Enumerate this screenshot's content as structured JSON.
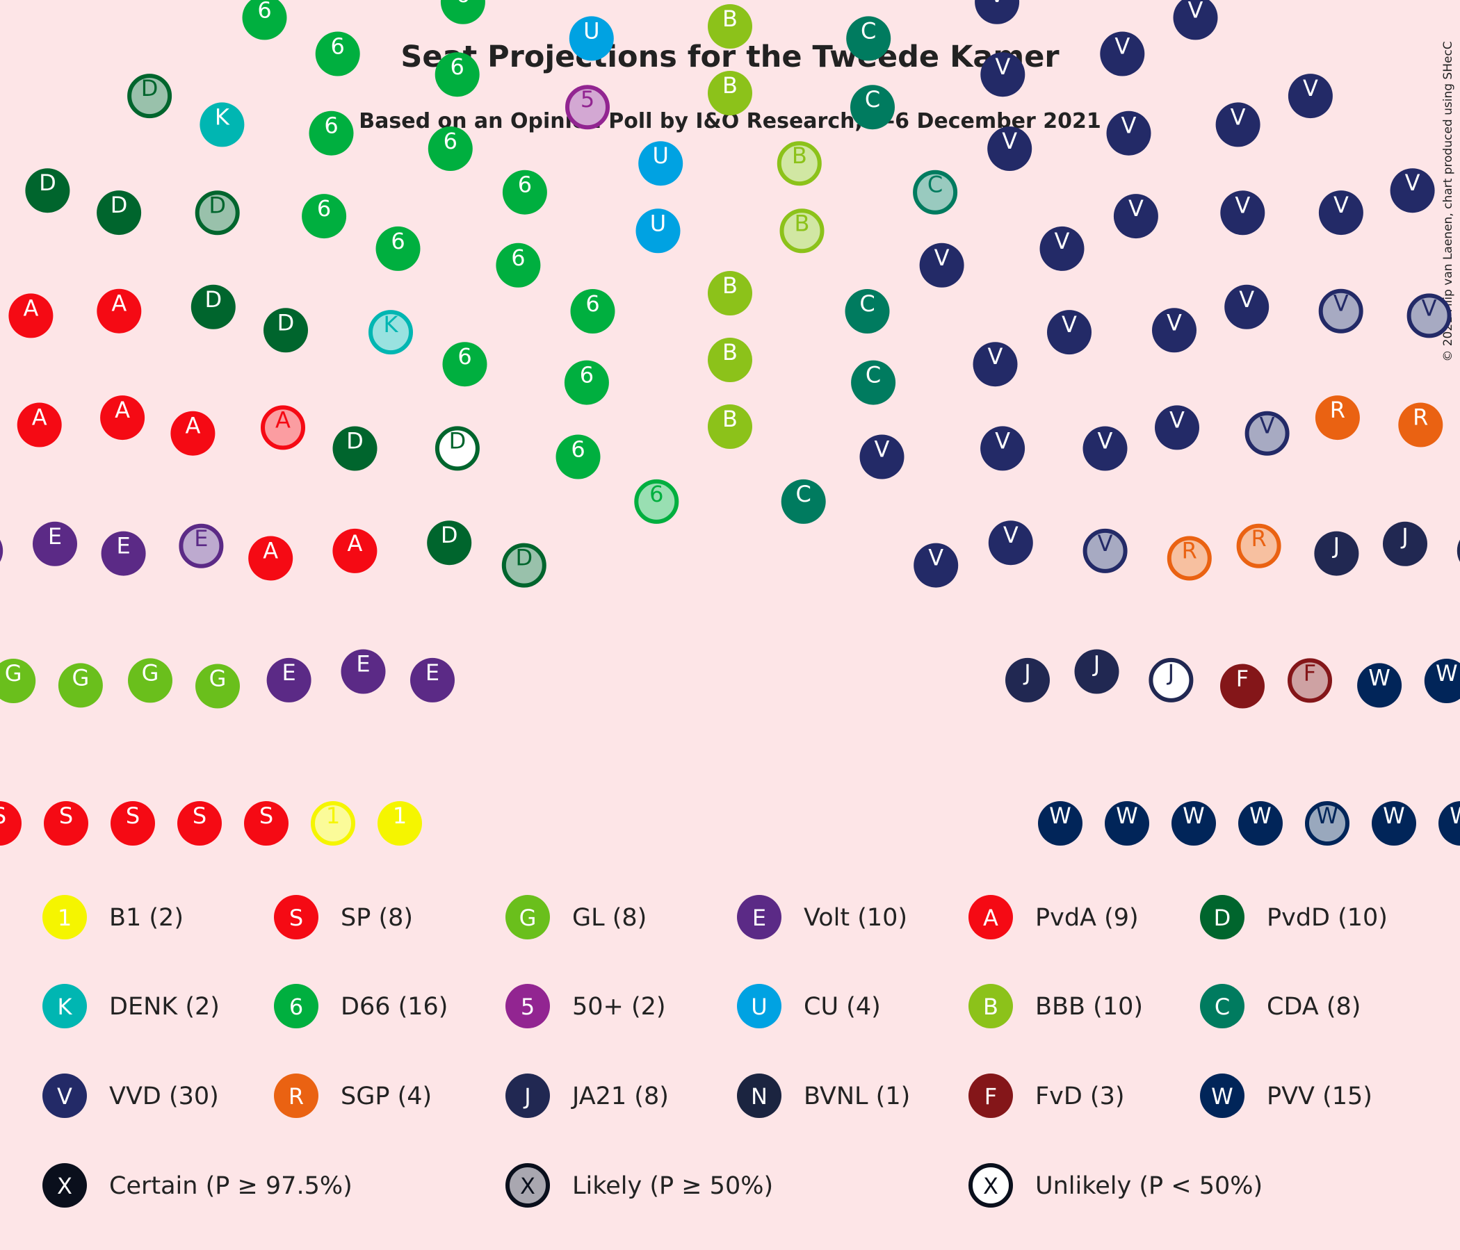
{
  "chart_data": {
    "type": "parliament",
    "title": "Seat Projections for the Tweede Kamer",
    "subtitle": "Based on an Opinion Poll by I&O Research, 3–6 December 2021",
    "copyright": "© 2021 Filip van Laenen, chart produced using SHecC",
    "total_seats": 150,
    "parties": [
      {
        "id": "B1",
        "letter": "1",
        "label": "B1 (2)",
        "color": "#f5f500",
        "seats": 2,
        "certain": 1,
        "likely": 1,
        "unlikely": 0
      },
      {
        "id": "SP",
        "letter": "S",
        "label": "SP (8)",
        "color": "#f50a14",
        "seats": 8,
        "certain": 6,
        "likely": 2,
        "unlikely": 0
      },
      {
        "id": "GL",
        "letter": "G",
        "label": "GL (8)",
        "color": "#6abf1c",
        "seats": 8,
        "certain": 7,
        "likely": 1,
        "unlikely": 0
      },
      {
        "id": "Volt",
        "letter": "E",
        "label": "Volt (10)",
        "color": "#5b2a86",
        "seats": 10,
        "certain": 8,
        "likely": 2,
        "unlikely": 0
      },
      {
        "id": "PvdA",
        "letter": "A",
        "label": "PvdA (9)",
        "color": "#f50a14",
        "seats": 9,
        "certain": 8,
        "likely": 1,
        "unlikely": 0
      },
      {
        "id": "PvdD",
        "letter": "D",
        "label": "PvdD (10)",
        "color": "#00652d",
        "seats": 10,
        "certain": 6,
        "likely": 3,
        "unlikely": 1
      },
      {
        "id": "DENK",
        "letter": "K",
        "label": "DENK (2)",
        "color": "#00b6b2",
        "seats": 2,
        "certain": 1,
        "likely": 1,
        "unlikely": 0
      },
      {
        "id": "D66",
        "letter": "6",
        "label": "D66 (16)",
        "color": "#00af3f",
        "seats": 16,
        "certain": 15,
        "likely": 1,
        "unlikely": 0
      },
      {
        "id": "50PLUS",
        "letter": "5",
        "label": "50+ (2)",
        "color": "#922591",
        "seats": 2,
        "certain": 1,
        "likely": 1,
        "unlikely": 0
      },
      {
        "id": "CU",
        "letter": "U",
        "label": "CU (4)",
        "color": "#00a2e2",
        "seats": 4,
        "certain": 4,
        "likely": 0,
        "unlikely": 0
      },
      {
        "id": "BBB",
        "letter": "B",
        "label": "BBB (10)",
        "color": "#8cc21a",
        "seats": 10,
        "certain": 8,
        "likely": 2,
        "unlikely": 0
      },
      {
        "id": "CDA",
        "letter": "C",
        "label": "CDA (8)",
        "color": "#007b5f",
        "seats": 8,
        "certain": 7,
        "likely": 1,
        "unlikely": 0
      },
      {
        "id": "VVD",
        "letter": "V",
        "label": "VVD (30)",
        "color": "#232a67",
        "seats": 30,
        "certain": 25,
        "likely": 4,
        "unlikely": 1
      },
      {
        "id": "SGP",
        "letter": "R",
        "label": "SGP (4)",
        "color": "#ea6212",
        "seats": 4,
        "certain": 2,
        "likely": 2,
        "unlikely": 0
      },
      {
        "id": "JA21",
        "letter": "J",
        "label": "JA21 (8)",
        "color": "#212852",
        "seats": 8,
        "certain": 6,
        "likely": 1,
        "unlikely": 1
      },
      {
        "id": "BVNL",
        "letter": "N",
        "label": "BVNL (1)",
        "color": "#1b2440",
        "seats": 1,
        "certain": 0,
        "likely": 1,
        "unlikely": 0
      },
      {
        "id": "FvD",
        "letter": "F",
        "label": "FvD (3)",
        "color": "#841619",
        "seats": 3,
        "certain": 2,
        "likely": 1,
        "unlikely": 0
      },
      {
        "id": "PVV",
        "letter": "W",
        "label": "PVV (15)",
        "color": "#012559",
        "seats": 15,
        "certain": 13,
        "likely": 2,
        "unlikely": 0
      }
    ],
    "certainty_legend": [
      {
        "letter": "X",
        "label": "Certain (P ≥ 97.5%)",
        "type": "certain"
      },
      {
        "letter": "X",
        "label": "Likely (P ≥ 50%)",
        "type": "likely"
      },
      {
        "letter": "X",
        "label": "Unlikely (P < 50%)",
        "type": "unlikely"
      }
    ]
  }
}
